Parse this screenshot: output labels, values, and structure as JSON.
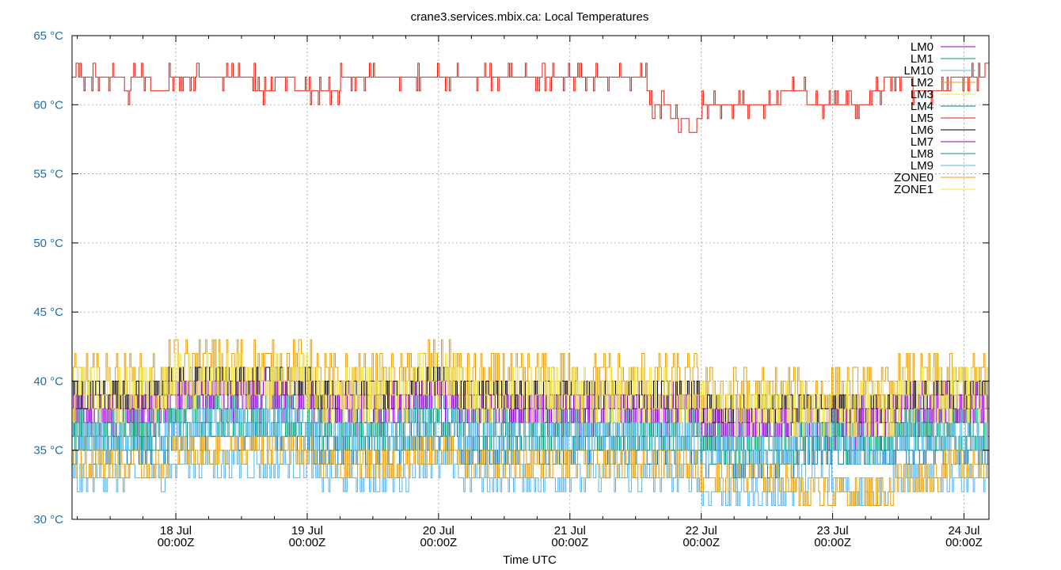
{
  "chart_data": {
    "type": "line",
    "title": "crane3.services.mbix.ca: Local Temperatures",
    "xlabel": "Time UTC",
    "ylabel": "",
    "ylim": [
      30,
      65
    ],
    "xlim": [
      -0.79,
      6.19
    ],
    "grid": true,
    "legend_position": "top-right",
    "y_ticks": [
      {
        "value": 30,
        "label": "30 °C"
      },
      {
        "value": 35,
        "label": "35 °C"
      },
      {
        "value": 40,
        "label": "40 °C"
      },
      {
        "value": 45,
        "label": "45 °C"
      },
      {
        "value": 50,
        "label": "50 °C"
      },
      {
        "value": 55,
        "label": "55 °C"
      },
      {
        "value": 60,
        "label": "60 °C"
      },
      {
        "value": 65,
        "label": "65 °C"
      }
    ],
    "x_ticks": [
      {
        "value": 0,
        "date": "18 Jul",
        "time": "00:00Z"
      },
      {
        "value": 1,
        "date": "19 Jul",
        "time": "00:00Z"
      },
      {
        "value": 2,
        "date": "20 Jul",
        "time": "00:00Z"
      },
      {
        "value": 3,
        "date": "21 Jul",
        "time": "00:00Z"
      },
      {
        "value": 4,
        "date": "22 Jul",
        "time": "00:00Z"
      },
      {
        "value": 5,
        "date": "23 Jul",
        "time": "00:00Z"
      },
      {
        "value": 6,
        "date": "24 Jul",
        "time": "00:00Z"
      }
    ],
    "series": [
      {
        "name": "LM0",
        "color": "#9400d3",
        "base": [
          37,
          38,
          39,
          39,
          39,
          38,
          38,
          39,
          38,
          38,
          38,
          38,
          38,
          37,
          37,
          37,
          37,
          38,
          38,
          38
        ],
        "amp": 2
      },
      {
        "name": "LM1",
        "color": "#009e73",
        "base": [
          37,
          37,
          38,
          38,
          38,
          37,
          37,
          38,
          37,
          37,
          37,
          37,
          37,
          36,
          36,
          37,
          36,
          37,
          37,
          37
        ],
        "amp": 1.5
      },
      {
        "name": "LM10",
        "color": "#56b4e9",
        "base": [
          33,
          33,
          34,
          34,
          34,
          33,
          33,
          34,
          33,
          33,
          33,
          33,
          33,
          32,
          32,
          33,
          32,
          33,
          33,
          33
        ],
        "amp": 1
      },
      {
        "name": "LM2",
        "color": "#e69f00",
        "base": [
          40,
          40,
          41,
          41,
          41,
          40,
          40,
          41,
          40,
          40,
          40,
          40,
          40,
          39,
          39,
          39,
          39,
          40,
          40,
          40
        ],
        "amp": 2
      },
      {
        "name": "LM3",
        "color": "#f0e442",
        "base": [
          39,
          39,
          40,
          40,
          40,
          39,
          39,
          40,
          39,
          39,
          39,
          39,
          39,
          38,
          38,
          38,
          38,
          39,
          39,
          39
        ],
        "amp": 1.5
      },
      {
        "name": "LM4",
        "color": "#0072b2",
        "base": [
          35,
          35,
          36,
          36,
          36,
          35,
          35,
          36,
          35,
          35,
          35,
          35,
          35,
          34,
          34,
          35,
          35,
          35,
          35,
          35
        ],
        "amp": 1
      },
      {
        "name": "LM5",
        "color": "#e51e10",
        "points": [
          [
            -0.79,
            62
          ],
          [
            -0.42,
            62
          ],
          [
            -0.4,
            61
          ],
          [
            -0.34,
            62
          ],
          [
            -0.25,
            62
          ],
          [
            -0.2,
            61
          ],
          [
            -0.1,
            61
          ],
          [
            -0.06,
            62
          ],
          [
            0.1,
            62
          ],
          [
            0.5,
            62
          ],
          [
            0.55,
            62
          ],
          [
            0.6,
            61
          ],
          [
            0.75,
            62
          ],
          [
            0.85,
            62
          ],
          [
            0.9,
            61
          ],
          [
            1.1,
            61
          ],
          [
            1.15,
            61
          ],
          [
            1.25,
            62
          ],
          [
            1.3,
            62
          ],
          [
            1.4,
            62
          ],
          [
            1.5,
            62
          ],
          [
            1.6,
            62
          ],
          [
            1.7,
            62
          ],
          [
            1.8,
            62
          ],
          [
            2.0,
            62
          ],
          [
            2.2,
            62
          ],
          [
            2.5,
            62
          ],
          [
            2.7,
            62
          ],
          [
            2.8,
            62
          ],
          [
            2.95,
            62
          ],
          [
            3.0,
            62
          ],
          [
            3.2,
            62
          ],
          [
            3.55,
            62
          ],
          [
            3.58,
            61
          ],
          [
            3.6,
            60
          ],
          [
            3.7,
            60
          ],
          [
            3.75,
            59
          ],
          [
            3.85,
            59
          ],
          [
            3.9,
            58
          ],
          [
            3.95,
            59
          ],
          [
            4.0,
            60
          ],
          [
            4.2,
            60
          ],
          [
            4.3,
            60
          ],
          [
            4.5,
            60
          ],
          [
            4.6,
            61
          ],
          [
            4.75,
            61
          ],
          [
            4.8,
            60
          ],
          [
            5.0,
            60
          ],
          [
            5.1,
            60
          ],
          [
            5.2,
            60
          ],
          [
            5.3,
            61
          ],
          [
            5.4,
            62
          ],
          [
            5.5,
            62
          ],
          [
            5.55,
            62
          ],
          [
            5.6,
            61
          ],
          [
            5.7,
            61
          ],
          [
            5.8,
            61
          ],
          [
            5.9,
            62
          ],
          [
            6.0,
            62
          ],
          [
            6.19,
            62
          ]
        ],
        "noise": 1
      },
      {
        "name": "LM6",
        "color": "#000000",
        "base": [
          39,
          39,
          40,
          40,
          40,
          39,
          39,
          40,
          39,
          39,
          39,
          39,
          39,
          38,
          38,
          38,
          38,
          39,
          39,
          39
        ],
        "amp": 1.5
      },
      {
        "name": "LM7",
        "color": "#9400d3",
        "base": [
          38,
          38,
          39,
          39,
          39,
          38,
          38,
          39,
          38,
          38,
          38,
          38,
          38,
          37,
          37,
          37,
          37,
          38,
          38,
          38
        ],
        "amp": 1.5
      },
      {
        "name": "LM8",
        "color": "#009e73",
        "base": [
          36,
          36,
          37,
          37,
          37,
          36,
          36,
          37,
          36,
          36,
          36,
          36,
          36,
          35,
          35,
          36,
          35,
          36,
          36,
          36
        ],
        "amp": 1.5
      },
      {
        "name": "LM9",
        "color": "#56b4e9",
        "base": [
          36,
          36,
          37,
          37,
          37,
          36,
          36,
          37,
          36,
          36,
          36,
          36,
          36,
          35,
          35,
          36,
          35,
          36,
          36,
          36
        ],
        "amp": 1.5
      },
      {
        "name": "ZONE0",
        "color": "#e69f00",
        "base": [
          34,
          34,
          35,
          35,
          35,
          34,
          34,
          35,
          34,
          34,
          34,
          34,
          34,
          33,
          33,
          32,
          32,
          33,
          34,
          34
        ],
        "amp": 1.5
      },
      {
        "name": "ZONE1",
        "color": "#f0e442",
        "base": [
          39,
          39,
          40,
          40,
          40,
          39,
          39,
          40,
          39,
          39,
          39,
          39,
          39,
          38,
          38,
          38,
          38,
          39,
          39,
          39
        ],
        "amp": 2
      }
    ]
  }
}
